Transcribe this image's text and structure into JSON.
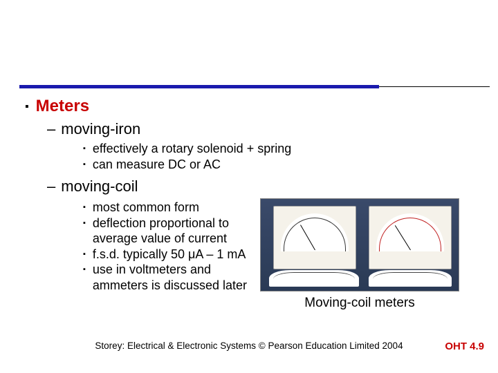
{
  "heading": "Meters",
  "sub1": {
    "label": "moving-iron",
    "bullets": [
      "effectively a rotary solenoid + spring",
      "can measure DC or AC"
    ]
  },
  "sub2": {
    "label": "moving-coil",
    "bullets": [
      "most common form",
      "deflection proportional to average value of current",
      "f.s.d. typically 50 μA – 1 mA",
      "use in voltmeters and ammeters is discussed later"
    ]
  },
  "figure_caption": "Moving-coil meters",
  "credit": "Storey: Electrical & Electronic Systems © Pearson Education Limited 2004",
  "page_number": "OHT 4.9",
  "colors": {
    "rule": "#1a1aad",
    "heading": "#c80000",
    "pageno": "#c80000",
    "body_text": "#000000",
    "background": "#ffffff"
  },
  "bullet_glyph": "▪",
  "dash_glyph": "–"
}
